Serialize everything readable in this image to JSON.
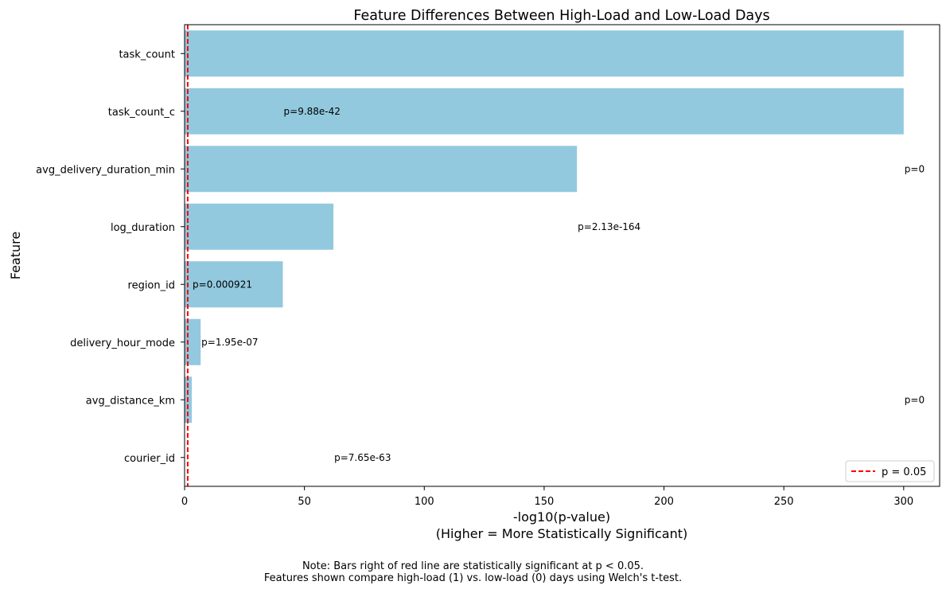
{
  "chart_data": {
    "type": "bar",
    "orientation": "horizontal",
    "title": "Feature Differences Between High-Load and Low-Load Days",
    "xlabel": "-log10(p-value)",
    "xlabel_sub": "(Higher = More Statistically Significant)",
    "ylabel": "Feature",
    "xlim": [
      0,
      315
    ],
    "xticks": [
      0,
      50,
      100,
      150,
      200,
      250,
      300
    ],
    "bar_color": "#92c9df",
    "threshold": {
      "value": 1.301,
      "label": "p = 0.05",
      "color": "#ff0000",
      "style": "dashed"
    },
    "legend": {
      "position": "lower-right",
      "entries": [
        "p = 0.05"
      ]
    },
    "grid": false,
    "categories": [
      "task_count",
      "task_count_c",
      "avg_delivery_duration_min",
      "log_duration",
      "region_id",
      "delivery_hour_mode",
      "avg_distance_km",
      "courier_id"
    ],
    "values": [
      300,
      300,
      163.7,
      62.1,
      41.0,
      6.7,
      3.0,
      0.0
    ],
    "annotations": [
      {
        "text": "p=9.88e-42",
        "x": 41.0,
        "row": 1
      },
      {
        "text": "p=0",
        "x": 300,
        "row": 2
      },
      {
        "text": "p=2.13e-164",
        "x": 163.7,
        "row": 3
      },
      {
        "text": "p=0.000921",
        "x": 3.0,
        "row": 4
      },
      {
        "text": "p=1.95e-07",
        "x": 6.7,
        "row": 5
      },
      {
        "text": "p=0",
        "x": 300,
        "row": 6
      },
      {
        "text": "p=7.65e-63",
        "x": 62.1,
        "row": 7
      }
    ]
  },
  "note": {
    "line1": "Note: Bars right of red line are statistically significant at p < 0.05.",
    "line2": "Features shown compare high-load (1) vs. low-load (0) days using Welch's t-test."
  }
}
